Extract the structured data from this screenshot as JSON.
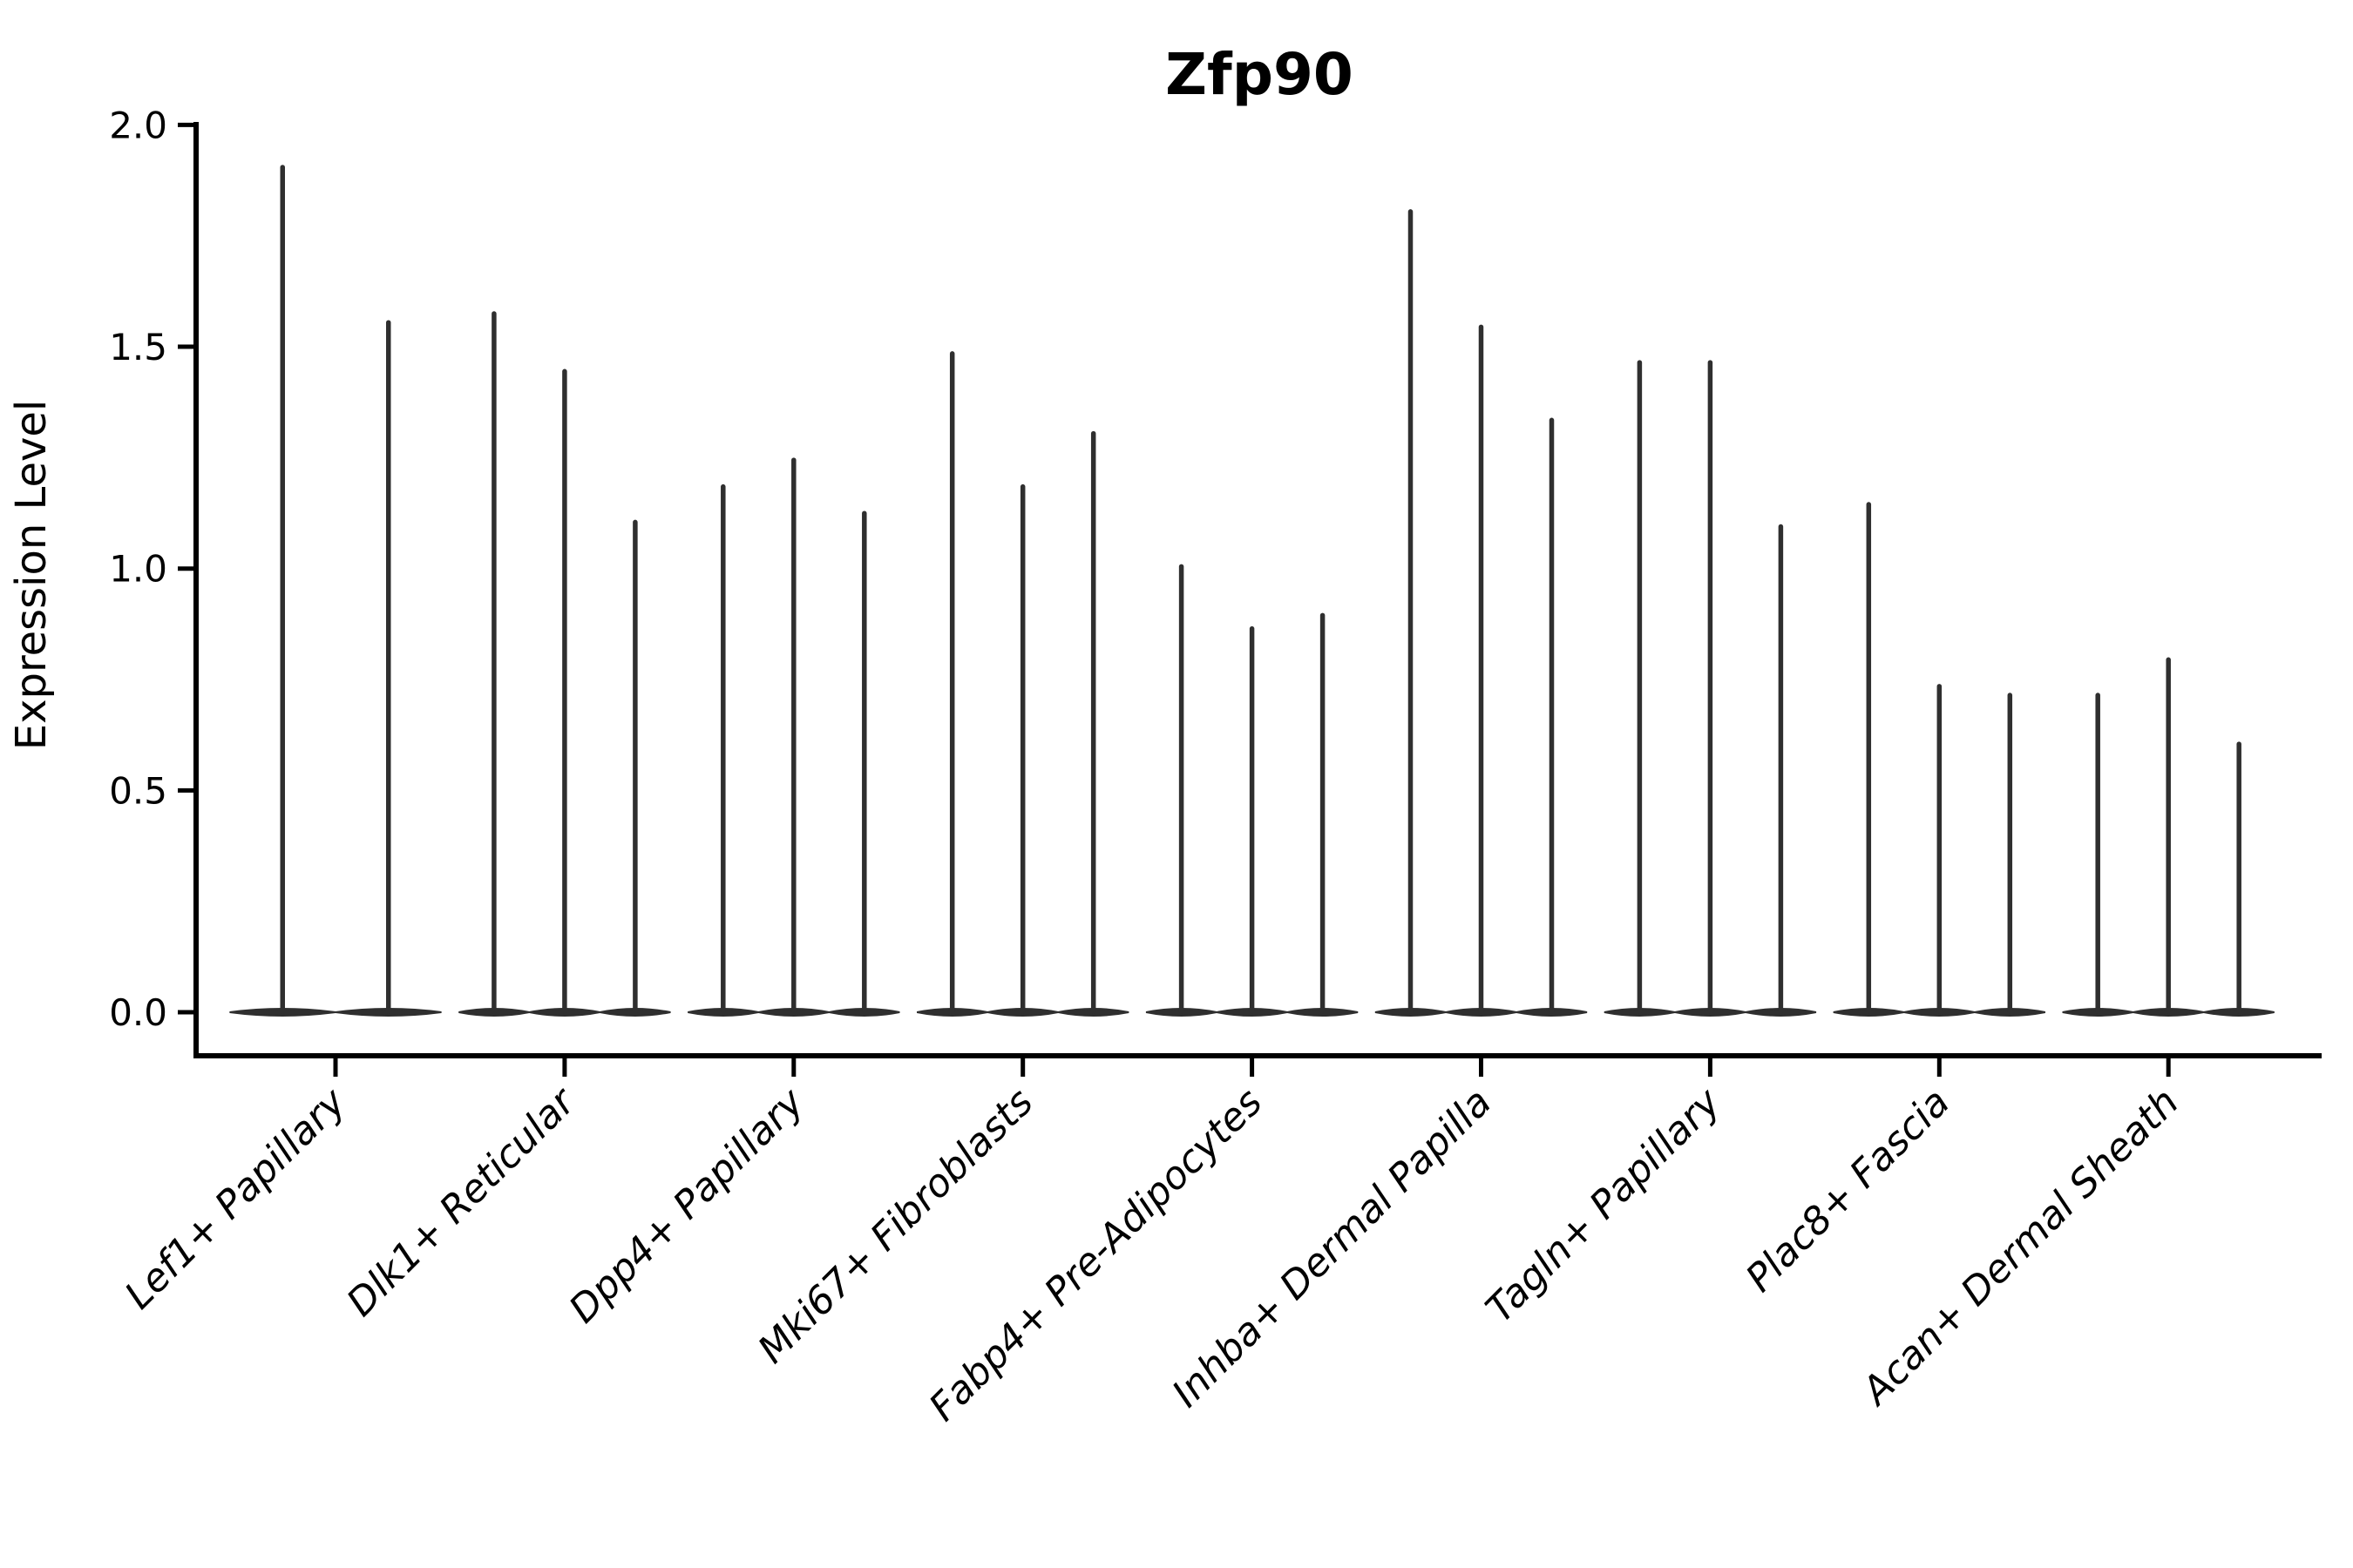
{
  "chart_data": {
    "type": "violin",
    "title": "Zfp90",
    "xlabel": "",
    "ylabel": "Expression Level",
    "ylim": [
      0.0,
      2.05
    ],
    "yticks": [
      0.0,
      0.5,
      1.0,
      1.5,
      2.0
    ],
    "ytick_labels": [
      "0.0",
      "0.5",
      "1.0",
      "1.5",
      "2.0"
    ],
    "grid": false,
    "legend": "none",
    "baseline_value": 0.0,
    "categories": [
      "Lef1+ Papillary",
      "Dlk1+ Reticular",
      "Dpp4+ Papillary",
      "Mki67+ Fibroblasts",
      "Fabp4+ Pre-Adipocytes",
      "Inhba+ Dermal Papilla",
      "Tagln+ Papillary",
      "Plac8+ Fascia",
      "Acan+ Dermal Sheath"
    ],
    "series": [
      {
        "category": "Lef1+ Papillary",
        "violin_max_values": [
          1.91,
          1.56
        ]
      },
      {
        "category": "Dlk1+ Reticular",
        "violin_max_values": [
          1.58,
          1.45,
          1.11
        ]
      },
      {
        "category": "Dpp4+ Papillary",
        "violin_max_values": [
          1.19,
          1.25,
          1.13
        ]
      },
      {
        "category": "Mki67+ Fibroblasts",
        "violin_max_values": [
          1.49,
          1.19,
          1.31
        ]
      },
      {
        "category": "Fabp4+ Pre-Adipocytes",
        "violin_max_values": [
          1.01,
          0.87,
          0.9
        ]
      },
      {
        "category": "Inhba+ Dermal Papilla",
        "violin_max_values": [
          1.81,
          1.55,
          1.34
        ]
      },
      {
        "category": "Tagln+ Papillary",
        "violin_max_values": [
          1.47,
          1.47,
          1.1
        ]
      },
      {
        "category": "Plac8+ Fascia",
        "violin_max_values": [
          1.15,
          0.74,
          0.72
        ]
      },
      {
        "category": "Acan+ Dermal Sheath",
        "violin_max_values": [
          0.72,
          0.8,
          0.61
        ]
      }
    ],
    "style": {
      "violin_color": "#2f2f2f",
      "axis_color": "#000000",
      "background": "#ffffff"
    }
  }
}
